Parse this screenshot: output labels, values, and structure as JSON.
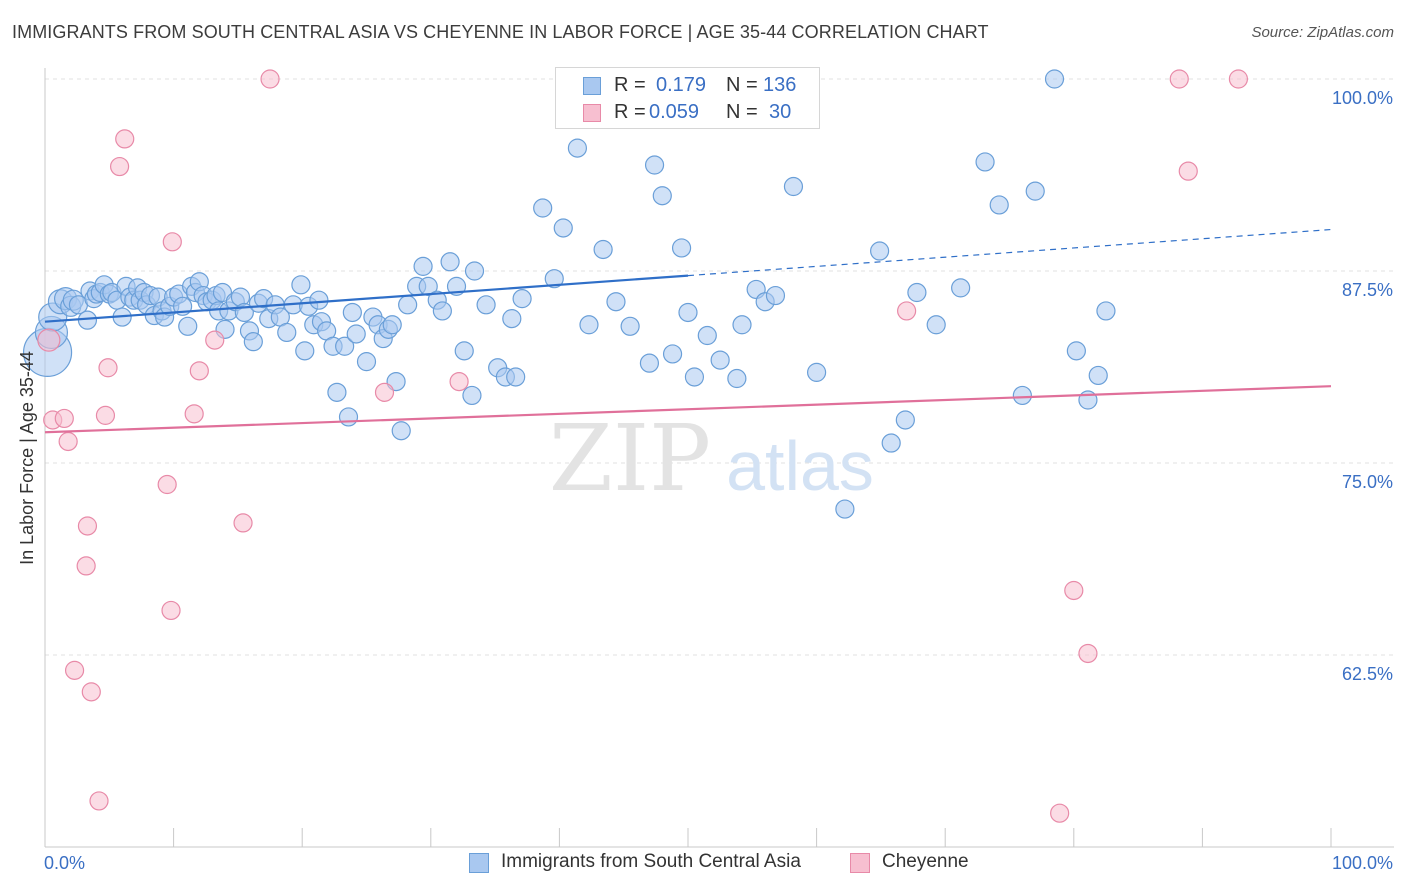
{
  "title": "IMMIGRANTS FROM SOUTH CENTRAL ASIA VS CHEYENNE IN LABOR FORCE | AGE 35-44 CORRELATION CHART",
  "source": "Source: ZipAtlas.com",
  "watermark": {
    "zip": "ZIP",
    "atlas": "atlas"
  },
  "legend": {
    "rows": [
      {
        "r_label": "R =",
        "r_value": "0.179",
        "n_label": "N =",
        "n_value": "136",
        "color": "#a9c8f0",
        "border": "#6a9fd8"
      },
      {
        "r_label": "R =",
        "r_value": "0.059",
        "n_label": "N =",
        "n_value": "30",
        "color": "#f7bfd0",
        "border": "#e88aa8"
      }
    ]
  },
  "bottom_legend": [
    {
      "label": "Immigrants from South Central Asia",
      "color": "#a9c8f0",
      "border": "#6a9fd8"
    },
    {
      "label": "Cheyenne",
      "color": "#f7bfd0",
      "border": "#e88aa8"
    }
  ],
  "chart_data": {
    "type": "scatter",
    "title": "IMMIGRANTS FROM SOUTH CENTRAL ASIA VS CHEYENNE IN LABOR FORCE | AGE 35-44 CORRELATION CHART",
    "xlabel": "",
    "ylabel": "In Labor Force | Age 35-44",
    "xlim": [
      0,
      100
    ],
    "ylim": [
      51,
      102
    ],
    "x_tick_labels": [
      "0.0%",
      "100.0%"
    ],
    "y_ticks": [
      62.5,
      75.0,
      87.5,
      100.0
    ],
    "y_tick_labels": [
      "62.5%",
      "75.0%",
      "87.5%",
      "100.0%"
    ],
    "grid": true,
    "grid_style": "dashed-horizontal",
    "legend_position": "top-center",
    "colors": {
      "blue": "#6a9fd8",
      "blue_fill": "#a9c8f0",
      "blue_line": "#2f6fc8",
      "pink": "#e88aa8",
      "pink_fill": "#f7bfd0",
      "pink_line": "#e0709a",
      "tick_label": "#3a6fc4"
    },
    "series": [
      {
        "name": "Immigrants from South Central Asia",
        "color": "#6a9fd8",
        "trend": {
          "x": [
            0,
            100
          ],
          "y": [
            84.2,
            90.2
          ],
          "solid_until_x": 50
        },
        "points": [
          [
            0.2,
            82.2,
            24
          ],
          [
            0.5,
            83.5,
            16
          ],
          [
            0.6,
            84.5,
            14
          ],
          [
            1.2,
            85.5,
            12
          ],
          [
            1.6,
            85.7,
            11
          ],
          [
            2.0,
            85.2,
            10
          ],
          [
            2.2,
            85.6,
            10
          ],
          [
            2.6,
            85.3,
            9
          ],
          [
            3.3,
            84.3,
            9
          ],
          [
            3.5,
            86.2,
            9
          ],
          [
            3.8,
            85.7,
            9
          ],
          [
            4.0,
            86.0,
            9
          ],
          [
            4.3,
            86.1,
            9
          ],
          [
            4.6,
            86.6,
            9
          ],
          [
            5.0,
            86.0,
            9
          ],
          [
            5.2,
            86.1,
            9
          ],
          [
            5.6,
            85.6,
            9
          ],
          [
            6.0,
            84.5,
            9
          ],
          [
            6.3,
            86.5,
            9
          ],
          [
            6.6,
            85.8,
            9
          ],
          [
            6.9,
            85.6,
            9
          ],
          [
            7.2,
            86.4,
            9
          ],
          [
            7.4,
            85.6,
            9
          ],
          [
            7.7,
            86.1,
            9
          ],
          [
            7.9,
            85.3,
            9
          ],
          [
            8.2,
            85.9,
            9
          ],
          [
            8.5,
            84.6,
            9
          ],
          [
            8.8,
            85.8,
            9
          ],
          [
            9.1,
            84.9,
            9
          ],
          [
            9.3,
            84.5,
            9
          ],
          [
            9.7,
            85.2,
            9
          ],
          [
            10.0,
            85.8,
            9
          ],
          [
            10.4,
            86.0,
            9
          ],
          [
            10.7,
            85.2,
            9
          ],
          [
            11.1,
            83.9,
            9
          ],
          [
            11.4,
            86.5,
            9
          ],
          [
            11.7,
            86.1,
            9
          ],
          [
            12.0,
            86.8,
            9
          ],
          [
            12.3,
            85.9,
            9
          ],
          [
            12.6,
            85.5,
            9
          ],
          [
            13.0,
            85.6,
            9
          ],
          [
            13.3,
            85.9,
            9
          ],
          [
            13.5,
            84.9,
            9
          ],
          [
            13.8,
            86.1,
            9
          ],
          [
            14.0,
            83.7,
            9
          ],
          [
            14.3,
            84.9,
            9
          ],
          [
            14.8,
            85.5,
            9
          ],
          [
            15.2,
            85.8,
            9
          ],
          [
            15.5,
            84.8,
            9
          ],
          [
            15.9,
            83.6,
            9
          ],
          [
            16.2,
            82.9,
            9
          ],
          [
            16.6,
            85.4,
            9
          ],
          [
            17.0,
            85.7,
            9
          ],
          [
            17.4,
            84.4,
            9
          ],
          [
            17.9,
            85.3,
            9
          ],
          [
            18.3,
            84.5,
            9
          ],
          [
            18.8,
            83.5,
            9
          ],
          [
            19.3,
            85.3,
            9
          ],
          [
            19.9,
            86.6,
            9
          ],
          [
            20.2,
            82.3,
            9
          ],
          [
            20.5,
            85.2,
            9
          ],
          [
            20.9,
            84.0,
            9
          ],
          [
            21.3,
            85.6,
            9
          ],
          [
            21.5,
            84.2,
            9
          ],
          [
            21.9,
            83.6,
            9
          ],
          [
            22.4,
            82.6,
            9
          ],
          [
            22.7,
            79.6,
            9
          ],
          [
            23.3,
            82.6,
            9
          ],
          [
            23.6,
            78.0,
            9
          ],
          [
            23.9,
            84.8,
            9
          ],
          [
            24.2,
            83.4,
            9
          ],
          [
            25.0,
            81.6,
            9
          ],
          [
            25.5,
            84.5,
            9
          ],
          [
            25.9,
            84.0,
            9
          ],
          [
            26.3,
            83.1,
            9
          ],
          [
            26.7,
            83.7,
            9
          ],
          [
            27.0,
            84.0,
            9
          ],
          [
            27.3,
            80.3,
            9
          ],
          [
            27.7,
            77.1,
            9
          ],
          [
            28.2,
            85.3,
            9
          ],
          [
            28.9,
            86.5,
            9
          ],
          [
            29.4,
            87.8,
            9
          ],
          [
            29.8,
            86.5,
            9
          ],
          [
            30.5,
            85.6,
            9
          ],
          [
            30.9,
            84.9,
            9
          ],
          [
            31.5,
            88.1,
            9
          ],
          [
            32.0,
            86.5,
            9
          ],
          [
            32.6,
            82.3,
            9
          ],
          [
            33.2,
            79.4,
            9
          ],
          [
            33.4,
            87.5,
            9
          ],
          [
            34.3,
            85.3,
            9
          ],
          [
            35.2,
            81.2,
            9
          ],
          [
            35.8,
            80.6,
            9
          ],
          [
            36.3,
            84.4,
            9
          ],
          [
            36.6,
            80.6,
            9
          ],
          [
            37.1,
            85.7,
            9
          ],
          [
            38.7,
            91.6,
            9
          ],
          [
            39.6,
            87.0,
            9
          ],
          [
            40.3,
            90.3,
            9
          ],
          [
            41.4,
            95.5,
            9
          ],
          [
            42.3,
            84.0,
            9
          ],
          [
            43.4,
            88.9,
            9
          ],
          [
            44.4,
            85.5,
            9
          ],
          [
            45.5,
            83.9,
            9
          ],
          [
            47.0,
            81.5,
            9
          ],
          [
            47.4,
            94.4,
            9
          ],
          [
            48.0,
            92.4,
            9
          ],
          [
            48.8,
            82.1,
            9
          ],
          [
            49.5,
            89.0,
            9
          ],
          [
            50.0,
            84.8,
            9
          ],
          [
            50.5,
            80.6,
            9
          ],
          [
            51.5,
            83.3,
            9
          ],
          [
            52.5,
            81.7,
            9
          ],
          [
            53.8,
            80.5,
            9
          ],
          [
            54.2,
            84.0,
            9
          ],
          [
            55.3,
            86.3,
            9
          ],
          [
            56.0,
            85.5,
            9
          ],
          [
            56.8,
            85.9,
            9
          ],
          [
            58.2,
            93.0,
            9
          ],
          [
            60.0,
            80.9,
            9
          ],
          [
            62.2,
            72.0,
            9
          ],
          [
            64.9,
            88.8,
            9
          ],
          [
            65.8,
            76.3,
            9
          ],
          [
            66.9,
            77.8,
            9
          ],
          [
            67.8,
            86.1,
            9
          ],
          [
            69.3,
            84.0,
            9
          ],
          [
            71.2,
            86.4,
            9
          ],
          [
            73.1,
            94.6,
            9
          ],
          [
            74.2,
            91.8,
            9
          ],
          [
            76.0,
            79.4,
            9
          ],
          [
            77.0,
            92.7,
            9
          ],
          [
            78.5,
            100.0,
            9
          ],
          [
            80.2,
            82.3,
            9
          ],
          [
            81.1,
            79.1,
            9
          ],
          [
            81.9,
            80.7,
            9
          ],
          [
            82.5,
            84.9,
            9
          ]
        ]
      },
      {
        "name": "Cheyenne",
        "color": "#e88aa8",
        "trend": {
          "x": [
            0,
            100
          ],
          "y": [
            77.0,
            80.0
          ],
          "solid_until_x": 100
        },
        "points": [
          [
            0.3,
            83.0,
            11
          ],
          [
            0.6,
            77.8,
            9
          ],
          [
            1.5,
            77.9,
            9
          ],
          [
            1.8,
            76.4,
            9
          ],
          [
            2.3,
            61.5,
            9
          ],
          [
            3.2,
            68.3,
            9
          ],
          [
            3.3,
            70.9,
            9
          ],
          [
            3.6,
            60.1,
            9
          ],
          [
            4.2,
            53.0,
            9
          ],
          [
            4.7,
            78.1,
            9
          ],
          [
            4.9,
            81.2,
            9
          ],
          [
            5.8,
            94.3,
            9
          ],
          [
            6.2,
            96.1,
            9
          ],
          [
            9.5,
            73.6,
            9
          ],
          [
            9.8,
            65.4,
            9
          ],
          [
            9.9,
            89.4,
            9
          ],
          [
            11.6,
            78.2,
            9
          ],
          [
            12.0,
            81.0,
            9
          ],
          [
            13.2,
            83.0,
            9
          ],
          [
            15.4,
            71.1,
            9
          ],
          [
            17.5,
            100.0,
            9
          ],
          [
            26.4,
            79.6,
            9
          ],
          [
            32.2,
            80.3,
            9
          ],
          [
            67.0,
            84.9,
            9
          ],
          [
            78.9,
            52.2,
            9
          ],
          [
            80.0,
            66.7,
            9
          ],
          [
            81.1,
            62.6,
            9
          ],
          [
            88.2,
            100.0,
            9
          ],
          [
            88.9,
            94.0,
            9
          ],
          [
            92.8,
            100.0,
            9
          ]
        ]
      }
    ]
  }
}
